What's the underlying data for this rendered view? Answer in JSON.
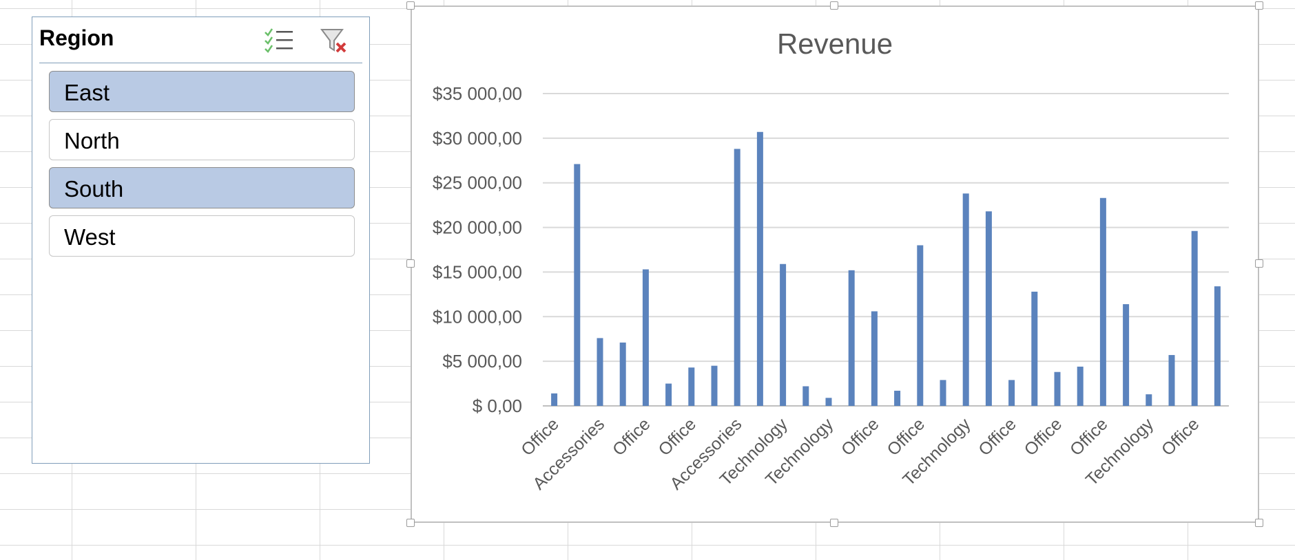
{
  "slicer": {
    "title": "Region",
    "multi_select_icon": "multi-select-icon",
    "clear_filter_icon": "clear-filter-icon",
    "items": [
      {
        "label": "East",
        "selected": true
      },
      {
        "label": "North",
        "selected": false
      },
      {
        "label": "South",
        "selected": true
      },
      {
        "label": "West",
        "selected": false
      }
    ]
  },
  "colors": {
    "bar": "#5b83bd",
    "selected_item": "#b9cae4",
    "gridline": "#d9d9d9",
    "axis_text": "#595959"
  },
  "chart_data": {
    "type": "bar",
    "title": "Revenue",
    "xlabel": "",
    "ylabel": "",
    "ylim": [
      0,
      35000
    ],
    "yticks": [
      0,
      5000,
      10000,
      15000,
      20000,
      25000,
      30000,
      35000
    ],
    "ytick_labels": [
      "$ 0,00",
      "$5 000,00",
      "$10 000,00",
      "$15 000,00",
      "$20 000,00",
      "$25 000,00",
      "$30 000,00",
      "$35 000,00"
    ],
    "grid": true,
    "legend": "none",
    "categories": [
      "Office",
      "",
      "Accessories",
      "",
      "Office",
      "",
      "Office",
      "",
      "Accessories",
      "",
      "Technology",
      "",
      "Technology",
      "",
      "Office",
      "",
      "Office",
      "",
      "Technology",
      "",
      "Office",
      "",
      "Office",
      "",
      "Office",
      "",
      "Technology",
      "",
      "Office",
      ""
    ],
    "values": [
      1400,
      27100,
      7600,
      7100,
      15300,
      2500,
      4300,
      4500,
      28800,
      30700,
      15900,
      2200,
      900,
      15200,
      10600,
      1700,
      18000,
      2900,
      23800,
      21800,
      2900,
      12800,
      3800,
      4400,
      23300,
      11400,
      1300,
      5700,
      19600,
      13400
    ]
  }
}
